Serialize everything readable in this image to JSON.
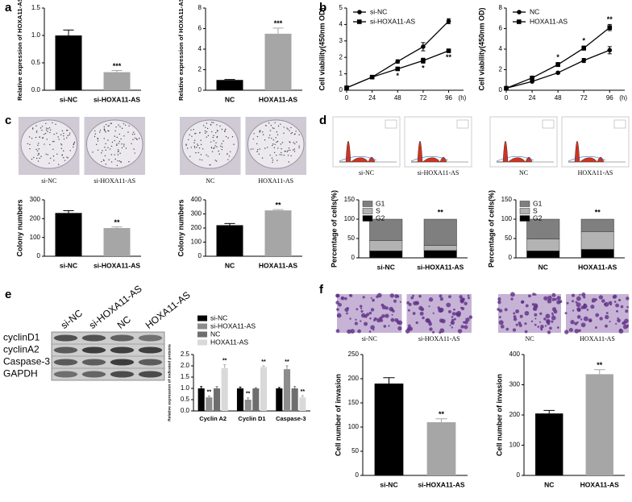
{
  "chart_data": [
    {
      "type": "bar",
      "panel": "a",
      "ylabel": "Relative expression of HOXA11-AS",
      "categories": [
        "si-NC",
        "si-HOXA11-AS"
      ],
      "values": [
        1.0,
        0.33
      ],
      "errors": [
        0.1,
        0.03
      ],
      "significance": [
        null,
        "***"
      ],
      "colors": [
        "#000000",
        "#a6a6a6"
      ],
      "ylim": [
        0,
        1.5
      ],
      "yticks": [
        {
          "value": 0,
          "label": "0.0"
        },
        0.5,
        {
          "value": 1,
          "label": "1.0"
        },
        1.5
      ]
    },
    {
      "type": "bar",
      "ylabel": "Relative expression of HOXA11-AS",
      "categories": [
        "NC",
        "HOXA11-AS"
      ],
      "values": [
        1.0,
        5.5
      ],
      "errors": [
        0.05,
        0.55
      ],
      "significance": [
        null,
        "***"
      ],
      "colors": [
        "#000000",
        "#a6a6a6"
      ],
      "ylim": [
        0,
        8
      ],
      "yticks": [
        0,
        2,
        4,
        6,
        8
      ]
    },
    {
      "type": "line",
      "panel": "b",
      "ylabel": "Cell viability(450nm OD)",
      "xlabel": "(h)",
      "x": [
        0,
        24,
        48,
        72,
        96
      ],
      "xlim": [
        0,
        110
      ],
      "xticks": [
        0,
        24,
        48,
        72,
        96
      ],
      "ylim": [
        0,
        5
      ],
      "yticks": [
        0,
        1,
        2,
        3,
        4,
        5
      ],
      "legend": "upper left",
      "series": [
        {
          "name": "si-NC",
          "color": "#000000",
          "marker": "circle",
          "values": [
            0.15,
            0.8,
            1.75,
            2.65,
            4.2
          ],
          "errors": [
            0.03,
            0.05,
            0.1,
            0.25,
            0.15
          ]
        },
        {
          "name": "si-HOXA11-AS",
          "color": "#000000",
          "marker": "square",
          "values": [
            0.15,
            0.8,
            1.3,
            1.8,
            2.4
          ],
          "errors": [
            0.03,
            0.05,
            0.1,
            0.15,
            0.08
          ],
          "significance": [
            null,
            null,
            "*",
            "*",
            "**"
          ]
        }
      ]
    },
    {
      "type": "line",
      "ylabel": "Cell viability(450nm OD)",
      "xlabel": "(h)",
      "x": [
        0,
        24,
        48,
        72,
        96
      ],
      "xlim": [
        0,
        110
      ],
      "xticks": [
        0,
        24,
        48,
        72,
        96
      ],
      "ylim": [
        0,
        8
      ],
      "yticks": [
        0,
        2,
        4,
        6,
        8
      ],
      "legend": "upper left",
      "series": [
        {
          "name": "NC",
          "color": "#000000",
          "marker": "circle",
          "values": [
            0.2,
            0.85,
            1.7,
            2.9,
            3.9
          ],
          "errors": [
            0.03,
            0.05,
            0.1,
            0.2,
            0.35
          ]
        },
        {
          "name": "HOXA11-AS",
          "color": "#000000",
          "marker": "square",
          "values": [
            0.2,
            1.2,
            2.5,
            4.1,
            6.1
          ],
          "errors": [
            0.03,
            0.1,
            0.2,
            0.2,
            0.3
          ],
          "significance": [
            null,
            null,
            "*",
            "*",
            "**"
          ]
        }
      ]
    },
    {
      "type": "bar",
      "panel": "c",
      "image_labels": [
        "si-NC",
        "si-HOXA11-AS"
      ],
      "ylabel": "Colony numbers",
      "categories": [
        "si-NC",
        "si-HOXA11-AS"
      ],
      "values": [
        230,
        150
      ],
      "errors": [
        12,
        6
      ],
      "significance": [
        null,
        "**"
      ],
      "colors": [
        "#000000",
        "#a6a6a6"
      ],
      "ylim": [
        0,
        300
      ],
      "yticks": [
        0,
        100,
        200,
        300
      ]
    },
    {
      "type": "bar",
      "image_labels": [
        "NC",
        "HOXA11-AS"
      ],
      "ylabel": "Colony numbers",
      "categories": [
        "NC",
        "HOXA11-AS"
      ],
      "values": [
        220,
        325
      ],
      "errors": [
        12,
        6
      ],
      "significance": [
        null,
        "**"
      ],
      "colors": [
        "#000000",
        "#a6a6a6"
      ],
      "ylim": [
        0,
        400
      ],
      "yticks": [
        0,
        100,
        200,
        300,
        400
      ]
    },
    {
      "type": "stacked_bar",
      "panel": "d",
      "image_labels": [
        "si-NC",
        "si-HOXA11-AS"
      ],
      "ylabel": "Percentage of cells(%)",
      "categories": [
        "si-NC",
        "si-HOXA11-AS"
      ],
      "legend": "upper left",
      "significance": [
        null,
        "**"
      ],
      "ylim": [
        0,
        150
      ],
      "yticks": [
        0,
        50,
        100,
        150
      ],
      "series": [
        {
          "name": "G1",
          "color": "#7f7f7f",
          "values": [
            55,
            68
          ]
        },
        {
          "name": "S",
          "color": "#b3b3b3",
          "values": [
            27,
            13
          ]
        },
        {
          "name": "G2",
          "color": "#000000",
          "values": [
            18,
            19
          ]
        }
      ]
    },
    {
      "type": "stacked_bar",
      "image_labels": [
        "NC",
        "HOXA11-AS"
      ],
      "ylabel": "Percentage of cells(%)",
      "categories": [
        "NC",
        "HOXA11-AS"
      ],
      "legend": "upper left",
      "significance": [
        null,
        "**"
      ],
      "ylim": [
        0,
        150
      ],
      "yticks": [
        0,
        50,
        100,
        150
      ],
      "series": [
        {
          "name": "G1",
          "color": "#7f7f7f",
          "values": [
            51,
            32
          ]
        },
        {
          "name": "S",
          "color": "#b3b3b3",
          "values": [
            31,
            46
          ]
        },
        {
          "name": "G2",
          "color": "#000000",
          "values": [
            18,
            22
          ]
        }
      ]
    },
    {
      "type": "grouped_bar",
      "ylabel": "Relative expression of indicated proteins",
      "categories": [
        "Cyclin A2",
        "Cyclin D1",
        "Caspase-3"
      ],
      "legend": "top",
      "ylim": [
        0,
        2.5
      ],
      "yticks": [
        {
          "value": 0,
          "label": "0.0"
        },
        0.5,
        {
          "value": 1,
          "label": "1.0"
        },
        1.5,
        {
          "value": 2,
          "label": "2.0"
        },
        2.5
      ],
      "series": [
        {
          "name": "si-NC",
          "color": "#000000",
          "values": [
            1,
            1,
            1
          ],
          "errors": [
            0.08,
            0.06,
            0.04
          ]
        },
        {
          "name": "si-HOXA11-AS",
          "color": "#8c8c8c",
          "values": [
            0.6,
            0.5,
            1.85
          ],
          "errors": [
            0.06,
            0.08,
            0.15
          ],
          "significance": [
            "**",
            "**",
            "**"
          ]
        },
        {
          "name": "NC",
          "color": "#6e6e6e",
          "values": [
            1,
            1,
            1
          ],
          "errors": [
            0.08,
            0.03,
            0.08
          ]
        },
        {
          "name": "HOXA11-AS",
          "color": "#d9d9d9",
          "values": [
            1.9,
            1.95,
            0.6
          ],
          "errors": [
            0.15,
            0.05,
            0.08
          ],
          "significance": [
            "**",
            "**",
            "**"
          ]
        }
      ]
    },
    {
      "type": "bar",
      "panel": "f",
      "image_labels": [
        "si-NC",
        "si-HOXA11-AS"
      ],
      "ylabel": "Cell number of invasion",
      "categories": [
        "si-NC",
        "si-HOXA11-AS"
      ],
      "values": [
        190,
        110
      ],
      "errors": [
        12,
        7
      ],
      "significance": [
        null,
        "**"
      ],
      "colors": [
        "#000000",
        "#a6a6a6"
      ],
      "ylim": [
        0,
        250
      ],
      "yticks": [
        0,
        50,
        100,
        150,
        200,
        250
      ]
    },
    {
      "type": "bar",
      "image_labels": [
        "NC",
        "HOXA11-AS"
      ],
      "ylabel": "Cell number of invasion",
      "categories": [
        "NC",
        "HOXA11-AS"
      ],
      "values": [
        205,
        335
      ],
      "errors": [
        10,
        15
      ],
      "significance": [
        null,
        "**"
      ],
      "colors": [
        "#000000",
        "#a6a6a6"
      ],
      "ylim": [
        0,
        400
      ],
      "yticks": [
        0,
        100,
        200,
        300,
        400
      ]
    }
  ],
  "blot": {
    "panel": "e",
    "lanes": [
      "si-NC",
      "si-HOXA11-AS",
      "NC",
      "HOXA11-AS"
    ],
    "rows": [
      "cyclinD1",
      "cyclinA2",
      "Caspase-3",
      "GAPDH"
    ]
  }
}
